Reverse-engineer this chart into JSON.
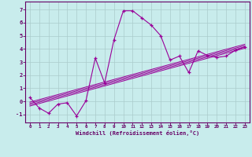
{
  "xlabel": "Windchill (Refroidissement éolien,°C)",
  "bg_color": "#c8ecec",
  "line_color": "#990099",
  "grid_color": "#aacccc",
  "axis_color": "#660066",
  "xlim": [
    -0.5,
    23.5
  ],
  "ylim": [
    -1.6,
    7.6
  ],
  "xticks": [
    0,
    1,
    2,
    3,
    4,
    5,
    6,
    7,
    8,
    9,
    10,
    11,
    12,
    13,
    14,
    15,
    16,
    17,
    18,
    19,
    20,
    21,
    22,
    23
  ],
  "yticks": [
    -1,
    0,
    1,
    2,
    3,
    4,
    5,
    6,
    7
  ],
  "series": [
    [
      0,
      0.3
    ],
    [
      1,
      -0.5
    ],
    [
      2,
      -0.9
    ],
    [
      3,
      -0.2
    ],
    [
      4,
      -0.1
    ],
    [
      5,
      -1.1
    ],
    [
      6,
      0.05
    ],
    [
      7,
      3.3
    ],
    [
      8,
      1.4
    ],
    [
      9,
      4.7
    ],
    [
      10,
      6.9
    ],
    [
      11,
      6.9
    ],
    [
      12,
      6.35
    ],
    [
      13,
      5.8
    ],
    [
      14,
      5.0
    ],
    [
      15,
      3.15
    ],
    [
      16,
      3.45
    ],
    [
      17,
      2.2
    ],
    [
      18,
      3.85
    ],
    [
      19,
      3.5
    ],
    [
      20,
      3.35
    ],
    [
      21,
      3.45
    ],
    [
      22,
      3.9
    ],
    [
      23,
      4.15
    ]
  ],
  "linear_lines": [
    [
      [
        0,
        -0.35
      ],
      [
        23,
        4.05
      ]
    ],
    [
      [
        0,
        -0.25
      ],
      [
        23,
        4.15
      ]
    ],
    [
      [
        0,
        -0.15
      ],
      [
        23,
        4.25
      ]
    ],
    [
      [
        0,
        -0.05
      ],
      [
        23,
        4.35
      ]
    ]
  ]
}
